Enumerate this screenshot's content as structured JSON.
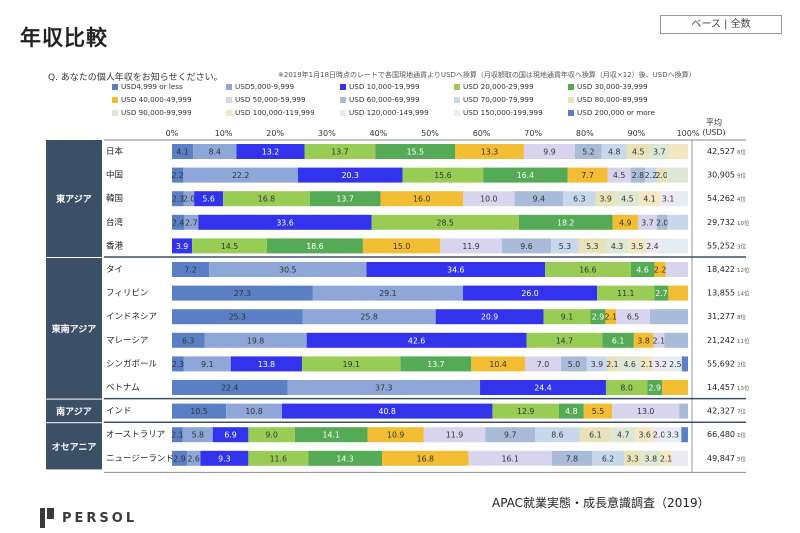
{
  "header": {
    "title": "年収比較",
    "base_label": "ベース | 全数",
    "question": "Q. あなたの個人年収をお知らせください。",
    "footnote": "※2019年1月18日時点のレートで各国現地通貨よりUSDへ換算（月収額取の国は現地通貨年収へ換算（月収×12）後、USDへ換算）"
  },
  "footer": {
    "source": "APAC就業実態・成長意識調査（2019）",
    "logo_text": "PERSOL"
  },
  "colors": [
    "#5b7fc4",
    "#8ea6d8",
    "#3333ee",
    "#99cc55",
    "#55aa55",
    "#f2bd33",
    "#d8d4ee",
    "#a8bbd8",
    "#c8d8ec",
    "#e8e2b8",
    "#dde8d4",
    "#f4e8c4",
    "#ece8f4",
    "#e4ecf4"
  ],
  "chart_data": {
    "type": "bar",
    "orientation": "horizontal",
    "stacked": true,
    "xlim": [
      0,
      100
    ],
    "x_ticks": [
      "0%",
      "10%",
      "20%",
      "30%",
      "40%",
      "50%",
      "60%",
      "70%",
      "80%",
      "90%",
      "100%"
    ],
    "avg_header": "平均\n(USD)",
    "series_names": [
      "USD4,999 or less",
      "USD5,000-9,999",
      "USD 10,000-19,999",
      "USD 20,000-29,999",
      "USD 30,000-39,999",
      "USD 40,000-49,999",
      "USD 50,000-59,999",
      "USD 60,000-69,999",
      "USD 70,000-79,999",
      "USD 80,000-89,999",
      "USD 90,000-99,999",
      "USD 100,000-119,999",
      "USD 120,000-149,999",
      "USD 150,000-199,999",
      "USD 200,000 or more"
    ],
    "regions": [
      {
        "name": "東アジア",
        "rows": [
          0,
          1,
          2,
          3,
          4
        ]
      },
      {
        "name": "東南アジア",
        "rows": [
          5,
          6,
          7,
          8,
          9,
          10
        ]
      },
      {
        "name": "南アジア",
        "rows": [
          11
        ]
      },
      {
        "name": "オセアニア",
        "rows": [
          12,
          13
        ]
      }
    ],
    "rows": [
      {
        "country": "日本",
        "avg": "42,527",
        "rank": "6位",
        "values": [
          4.1,
          8.4,
          13.2,
          13.7,
          15.5,
          13.3,
          9.9,
          5.2,
          4.8,
          4.5,
          3.7,
          3.7
        ],
        "labels": [
          "4.1",
          "8.4",
          "13.2",
          "13.7",
          "15.5",
          "13.3",
          "9.9",
          "5.2",
          "4.8",
          "4.5",
          "3.7",
          ""
        ]
      },
      {
        "country": "中国",
        "avg": "30,905",
        "rank": "9位",
        "values": [
          2.2,
          22.2,
          20.3,
          15.6,
          16.4,
          7.7,
          4.5,
          2.8,
          2.2,
          2.0,
          4.1
        ],
        "labels": [
          "2.2",
          "22.2",
          "20.3",
          "15.6",
          "16.4",
          "7.7",
          "4.5",
          "2.8",
          "2.2",
          "2.0",
          ""
        ]
      },
      {
        "country": "韓国",
        "avg": "54,262",
        "rank": "4位",
        "values": [
          2.3,
          2.0,
          5.6,
          16.8,
          13.7,
          16.0,
          10.0,
          9.4,
          6.3,
          3.9,
          4.5,
          4.1,
          3.1,
          2.3
        ],
        "labels": [
          "2.3",
          "2.0",
          "5.6",
          "16.8",
          "13.7",
          "16.0",
          "10.0",
          "9.4",
          "6.3",
          "3.9",
          "4.5",
          "4.1",
          "3.1",
          ""
        ]
      },
      {
        "country": "台湾",
        "avg": "29,732",
        "rank": "10位",
        "values": [
          2.4,
          2.7,
          33.6,
          28.5,
          18.2,
          4.9,
          3.7,
          2.0,
          4.0
        ],
        "labels": [
          "2.4",
          "2.7",
          "33.6",
          "28.5",
          "18.2",
          "4.9",
          "3.7",
          "2.0",
          ""
        ]
      },
      {
        "country": "香港",
        "avg": "55,252",
        "rank": "3位",
        "values": [
          0,
          0,
          3.9,
          14.5,
          18.6,
          15.0,
          11.9,
          9.6,
          5.3,
          5.3,
          4.3,
          3.5,
          2.4,
          5.7
        ],
        "labels": [
          "",
          "",
          "3.9",
          "14.5",
          "18.6",
          "15.0",
          "11.9",
          "9.6",
          "5.3",
          "5.3",
          "4.3",
          "3.5",
          "2.4",
          ""
        ]
      },
      {
        "country": "タイ",
        "avg": "18,422",
        "rank": "12位",
        "values": [
          7.2,
          30.5,
          34.6,
          16.6,
          4.6,
          2.2,
          4.3
        ],
        "labels": [
          "7.2",
          "30.5",
          "34.6",
          "16.6",
          "4.6",
          "2.2",
          ""
        ]
      },
      {
        "country": "フィリピン",
        "avg": "13,855",
        "rank": "14位",
        "values": [
          27.3,
          29.1,
          26.0,
          11.1,
          2.7,
          3.8
        ],
        "labels": [
          "27.3",
          "29.1",
          "26.0",
          "11.1",
          "2.7",
          ""
        ]
      },
      {
        "country": "インドネシア",
        "avg": "31,277",
        "rank": "8位",
        "values": [
          25.3,
          25.8,
          20.9,
          9.1,
          2.9,
          2.1,
          6.5,
          7.4
        ],
        "labels": [
          "25.3",
          "25.8",
          "20.9",
          "9.1",
          "2.9",
          "2.1",
          "6.5",
          ""
        ]
      },
      {
        "country": "マレーシア",
        "avg": "21,242",
        "rank": "11位",
        "values": [
          6.3,
          19.8,
          42.6,
          14.7,
          6.1,
          3.8,
          2.1,
          4.6
        ],
        "labels": [
          "6.3",
          "19.8",
          "42.6",
          "14.7",
          "6.1",
          "3.8",
          "2.1",
          ""
        ]
      },
      {
        "country": "シンガポール",
        "avg": "55,692",
        "rank": "2位",
        "values": [
          2.3,
          9.1,
          13.8,
          19.1,
          13.7,
          10.4,
          7.0,
          5.0,
          3.9,
          2.1,
          4.6,
          2.1,
          3.2,
          2.5,
          1.2
        ],
        "labels": [
          "2.3",
          "9.1",
          "13.8",
          "19.1",
          "13.7",
          "10.4",
          "7.0",
          "5.0",
          "3.9",
          "2.1",
          "4.6",
          "2.1",
          "3.2",
          "2.5",
          ""
        ]
      },
      {
        "country": "ベトナム",
        "avg": "14,457",
        "rank": "13位",
        "values": [
          22.4,
          37.3,
          24.4,
          8.0,
          2.9,
          5.0
        ],
        "labels": [
          "22.4",
          "37.3",
          "24.4",
          "8.0",
          "2.9",
          ""
        ]
      },
      {
        "country": "インド",
        "avg": "42,327",
        "rank": "7位",
        "values": [
          10.5,
          10.8,
          40.8,
          12.9,
          4.8,
          5.5,
          13.0,
          1.7
        ],
        "labels": [
          "10.5",
          "10.8",
          "40.8",
          "12.9",
          "4.8",
          "5.5",
          "13.0",
          ""
        ]
      },
      {
        "country": "オーストラリア",
        "avg": "66,480",
        "rank": "1位",
        "values": [
          2.1,
          5.8,
          6.9,
          9.0,
          14.1,
          10.9,
          11.9,
          9.7,
          8.6,
          6.1,
          4.7,
          3.6,
          2.0,
          3.3,
          1.3
        ],
        "labels": [
          "2.1",
          "5.8",
          "6.9",
          "9.0",
          "14.1",
          "10.9",
          "11.9",
          "9.7",
          "8.6",
          "6.1",
          "4.7",
          "3.6",
          "2.0",
          "3.3",
          ""
        ]
      },
      {
        "country": "ニュージーランド",
        "avg": "49,847",
        "rank": "5位",
        "values": [
          2.9,
          2.6,
          9.3,
          11.6,
          14.3,
          16.8,
          16.1,
          7.8,
          6.2,
          3.3,
          3.8,
          2.1,
          3.2
        ],
        "labels": [
          "2.9",
          "2.6",
          "9.3",
          "11.6",
          "14.3",
          "16.8",
          "16.1",
          "7.8",
          "6.2",
          "3.3",
          "3.8",
          "2.1",
          ""
        ]
      }
    ]
  }
}
